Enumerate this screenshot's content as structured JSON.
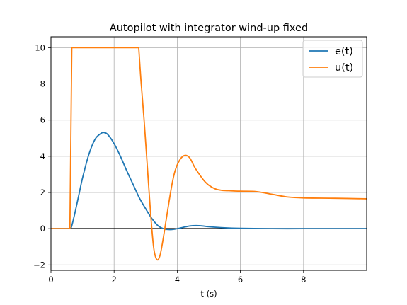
{
  "chart_data": {
    "type": "line",
    "title": "Autopilot with integrator wind-up fixed",
    "xlabel": "t (s)",
    "ylabel": "",
    "xlim": [
      0,
      10
    ],
    "ylim": [
      -2.3,
      10.6
    ],
    "xticks": [
      0,
      2,
      4,
      6,
      8
    ],
    "xtick_labels": [
      "0",
      "2",
      "4",
      "6",
      "8"
    ],
    "yticks": [
      -2,
      0,
      2,
      4,
      6,
      8,
      10
    ],
    "ytick_labels": [
      "−2",
      "0",
      "2",
      "4",
      "6",
      "8",
      "10"
    ],
    "grid": true,
    "legend_position": "top-right",
    "reference_line": {
      "y": 0,
      "color": "#000000"
    },
    "series": [
      {
        "name": "e(t)",
        "color": "#1f77b4",
        "x": [
          0,
          0.6,
          0.65,
          0.75,
          0.9,
          1.0,
          1.2,
          1.4,
          1.6,
          1.7,
          1.8,
          2.0,
          2.2,
          2.4,
          2.6,
          2.8,
          3.0,
          3.2,
          3.4,
          3.6,
          3.8,
          4.0,
          4.2,
          4.4,
          4.6,
          4.8,
          5.0,
          5.5,
          6.0,
          7.0,
          8.0,
          9.0,
          10.0
        ],
        "y": [
          0,
          0,
          0.1,
          0.8,
          2.0,
          2.8,
          4.1,
          4.95,
          5.28,
          5.3,
          5.2,
          4.7,
          4.0,
          3.2,
          2.45,
          1.7,
          1.1,
          0.55,
          0.15,
          -0.02,
          -0.05,
          0.0,
          0.08,
          0.15,
          0.17,
          0.15,
          0.11,
          0.05,
          0.02,
          0.0,
          0.0,
          0.0,
          0.0
        ]
      },
      {
        "name": "u(t)",
        "color": "#ff7f0e",
        "x": [
          0,
          0.6,
          0.66,
          0.7,
          1.5,
          2.5,
          2.78,
          2.85,
          2.95,
          3.05,
          3.15,
          3.25,
          3.35,
          3.45,
          3.55,
          3.65,
          3.75,
          3.85,
          3.95,
          4.1,
          4.25,
          4.4,
          4.55,
          4.7,
          4.85,
          5.0,
          5.2,
          5.4,
          5.6,
          6.0,
          6.5,
          7.0,
          7.5,
          8.0,
          9.0,
          10.0
        ],
        "y": [
          0,
          0,
          10.0,
          10.0,
          10.0,
          10.0,
          10.0,
          8.2,
          6.0,
          3.5,
          1.0,
          -1.0,
          -1.7,
          -1.5,
          -0.6,
          0.5,
          1.6,
          2.6,
          3.3,
          3.85,
          4.05,
          3.9,
          3.4,
          3.0,
          2.65,
          2.4,
          2.2,
          2.12,
          2.1,
          2.07,
          2.05,
          1.9,
          1.75,
          1.7,
          1.68,
          1.65
        ]
      }
    ]
  }
}
